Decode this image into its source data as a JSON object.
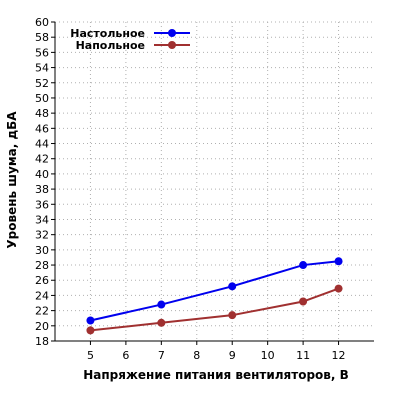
{
  "chart_data": {
    "type": "line",
    "xlabel": "Напряжение питания вентиляторов, В",
    "ylabel": "Уровень шума, дБА",
    "xlim": [
      4,
      13
    ],
    "ylim": [
      18,
      60
    ],
    "xticks": [
      5,
      6,
      7,
      8,
      9,
      10,
      11,
      12
    ],
    "yticks": [
      18,
      20,
      22,
      24,
      26,
      28,
      30,
      32,
      34,
      36,
      38,
      40,
      42,
      44,
      46,
      48,
      50,
      52,
      54,
      56,
      58,
      60
    ],
    "grid": true,
    "legend_position": "top-left",
    "series": [
      {
        "name": "Настольное",
        "color": "#0000ee",
        "x": [
          5,
          7,
          9,
          11,
          12
        ],
        "y": [
          20.7,
          22.8,
          25.2,
          28.0,
          28.5
        ]
      },
      {
        "name": "Напольное",
        "color": "#a03030",
        "x": [
          5,
          7,
          9,
          11,
          12
        ],
        "y": [
          19.4,
          20.4,
          21.4,
          23.2,
          24.9
        ]
      }
    ]
  }
}
